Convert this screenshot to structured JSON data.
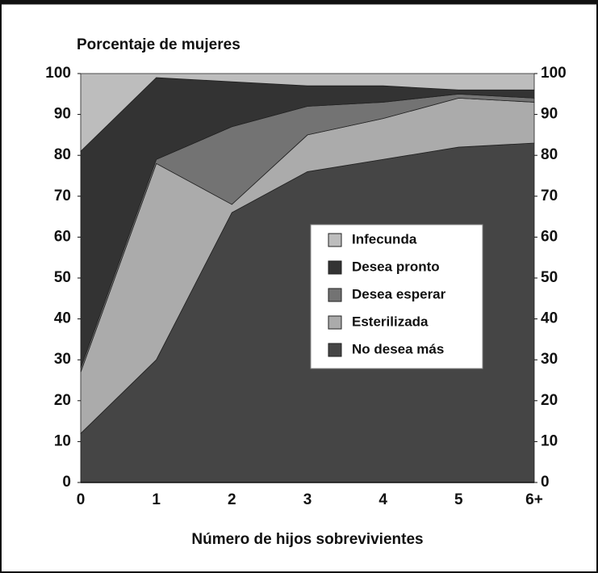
{
  "chart_data": {
    "type": "stacked_area",
    "title": "Porcentaje de mujeres",
    "x_label": "Número de hijos sobrevivientes",
    "categories": [
      "0",
      "1",
      "2",
      "3",
      "4",
      "5",
      "6+"
    ],
    "series": [
      {
        "name": "No desea más",
        "color": "#454545",
        "values": [
          12,
          30,
          66,
          76,
          79,
          82,
          83
        ]
      },
      {
        "name": "Esterilizada",
        "color": "#ababab",
        "values": [
          15,
          48,
          2,
          9,
          10,
          12,
          10
        ]
      },
      {
        "name": "Desea esperar",
        "color": "#737373",
        "values": [
          1,
          1,
          19,
          7,
          4,
          1,
          1
        ]
      },
      {
        "name": "Desea pronto",
        "color": "#333333",
        "values": [
          53,
          20,
          11,
          5,
          4,
          1,
          2
        ]
      },
      {
        "name": "Infecunda",
        "color": "#bdbdbd",
        "values": [
          19,
          1,
          2,
          3,
          3,
          4,
          4
        ]
      }
    ],
    "ylim": [
      0,
      100
    ],
    "yticks": [
      0,
      10,
      20,
      30,
      40,
      50,
      60,
      70,
      80,
      90,
      100
    ],
    "y2lim": [
      0,
      100
    ],
    "y2ticks": [
      0,
      10,
      20,
      30,
      40,
      50,
      60,
      70,
      80,
      90,
      100
    ],
    "legend": "center-right"
  }
}
